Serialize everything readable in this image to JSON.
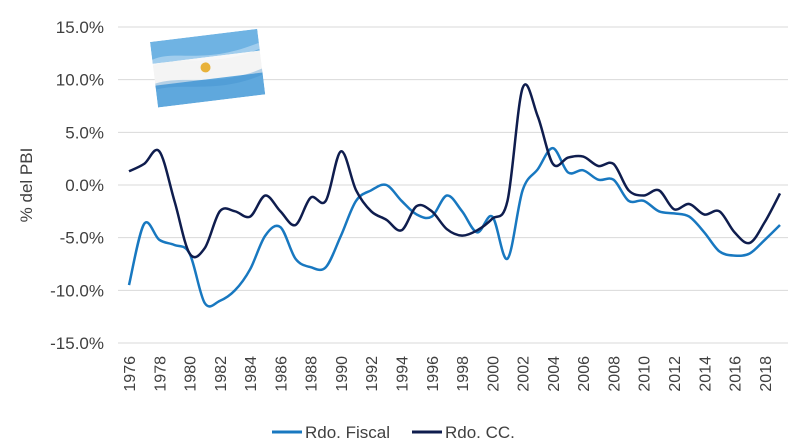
{
  "colors": {
    "fiscal": "#1878c0",
    "cc": "#0f1d4e"
  },
  "chart_data": {
    "type": "line",
    "ylabel": "% del PBI",
    "ylim": [
      -15,
      15
    ],
    "yticks": [
      15,
      10,
      5,
      0,
      -5,
      -10,
      -15
    ],
    "ytick_labels": [
      "15.0%",
      "10.0%",
      "5.0%",
      "0.0%",
      "-5.0%",
      "-10.0%",
      "-15.0%"
    ],
    "xtick_labels": [
      "1976",
      "1978",
      "1980",
      "1982",
      "1984",
      "1986",
      "1988",
      "1990",
      "1992",
      "1994",
      "1996",
      "1998",
      "2000",
      "2002",
      "2004",
      "2006",
      "2008",
      "2010",
      "2012",
      "2014",
      "2016",
      "2018"
    ],
    "x": [
      1976,
      1977,
      1978,
      1979,
      1980,
      1981,
      1982,
      1983,
      1984,
      1985,
      1986,
      1987,
      1988,
      1989,
      1990,
      1991,
      1992,
      1993,
      1994,
      1995,
      1996,
      1997,
      1998,
      1999,
      2000,
      2001,
      2002,
      2003,
      2004,
      2005,
      2006,
      2007,
      2008,
      2009,
      2010,
      2011,
      2012,
      2013,
      2014,
      2015,
      2016,
      2017,
      2018,
      2019
    ],
    "series": [
      {
        "name": "Rdo. Fiscal",
        "values": [
          -9.5,
          -3.7,
          -5.2,
          -5.7,
          -6.5,
          -11.2,
          -11.0,
          -10.0,
          -8.0,
          -4.8,
          -4.0,
          -7.0,
          -7.8,
          -7.8,
          -4.8,
          -1.5,
          -0.5,
          0.0,
          -1.5,
          -2.8,
          -3.0,
          -1.0,
          -2.5,
          -4.5,
          -3.0,
          -7.0,
          -0.5,
          1.5,
          3.5,
          1.2,
          1.4,
          0.5,
          0.5,
          -1.5,
          -1.5,
          -2.5,
          -2.7,
          -3.0,
          -4.5,
          -6.3,
          -6.7,
          -6.5,
          -5.2,
          -3.8
        ]
      },
      {
        "name": "Rdo. CC.",
        "values": [
          1.3,
          2.0,
          3.2,
          -1.5,
          -6.5,
          -6.0,
          -2.5,
          -2.5,
          -3.0,
          -1.0,
          -2.5,
          -3.8,
          -1.2,
          -1.5,
          3.2,
          -0.5,
          -2.5,
          -3.3,
          -4.3,
          -2.0,
          -2.5,
          -4.2,
          -4.8,
          -4.3,
          -3.2,
          -1.5,
          9.2,
          6.5,
          2.0,
          2.6,
          2.7,
          1.8,
          2.0,
          -0.5,
          -1.0,
          -0.5,
          -2.3,
          -1.8,
          -2.8,
          -2.5,
          -4.5,
          -5.5,
          -3.5,
          -0.8
        ]
      }
    ],
    "legend": {
      "position": "bottom",
      "items": [
        "Rdo. Fiscal",
        "Rdo. CC."
      ]
    }
  }
}
